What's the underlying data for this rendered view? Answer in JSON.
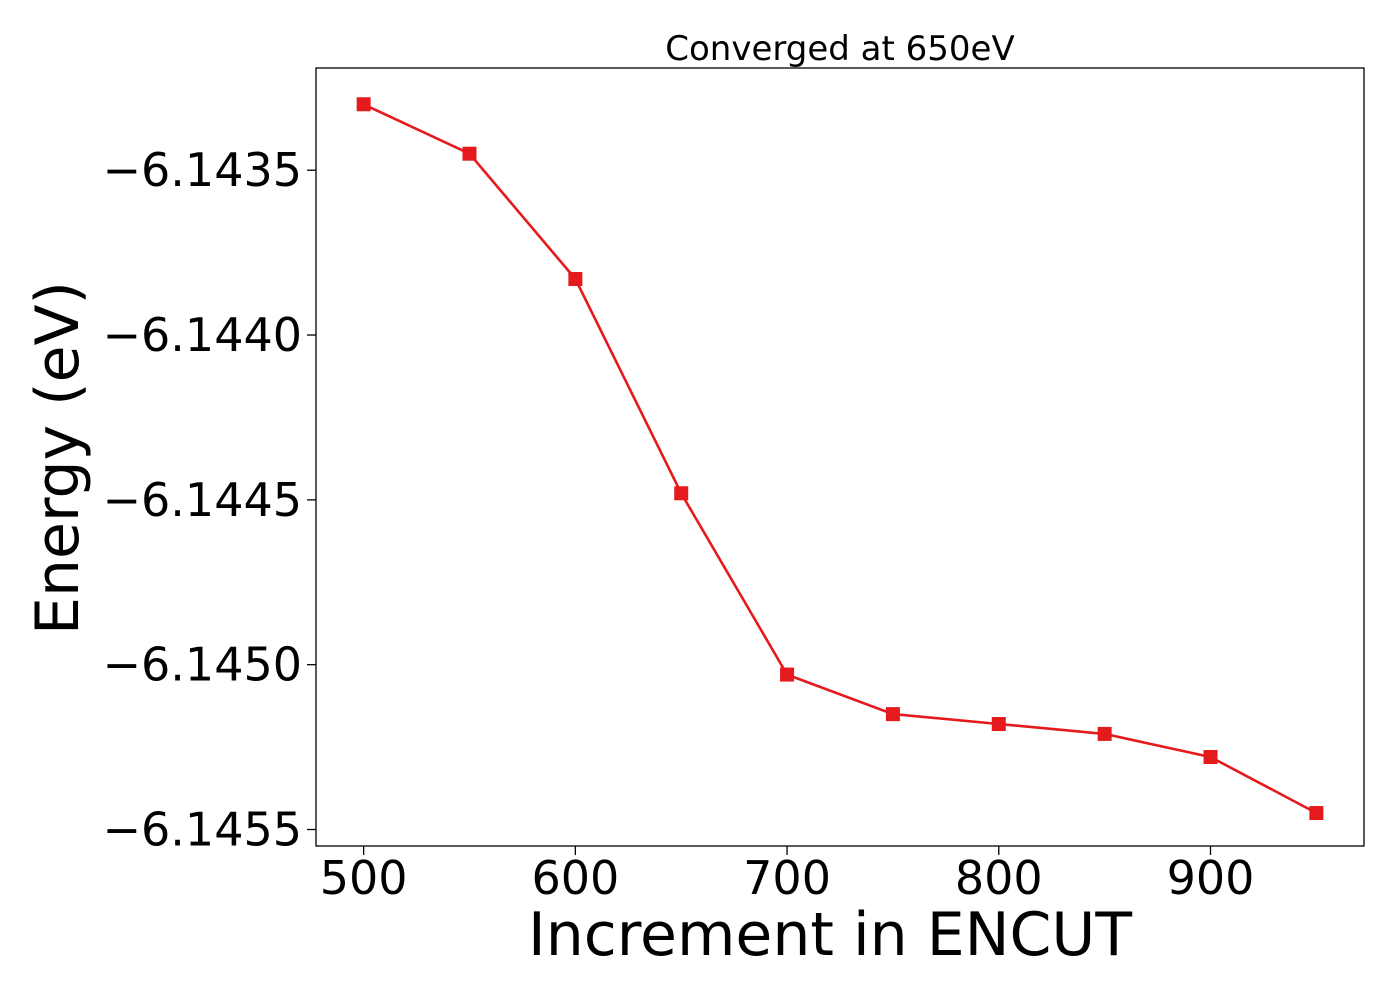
{
  "chart_data": {
    "type": "line",
    "title": "Converged at 650eV",
    "xlabel": "Increment in ENCUT",
    "ylabel": "Energy (eV)",
    "x": [
      500,
      550,
      600,
      650,
      700,
      750,
      800,
      850,
      900,
      950
    ],
    "series": [
      {
        "values": [
          -6.1433,
          -6.14345,
          -6.14383,
          -6.14448,
          -6.14503,
          -6.14515,
          -6.14518,
          -6.14521,
          -6.14528,
          -6.14545
        ],
        "color": "#e41a1c",
        "marker": "square"
      }
    ],
    "xlim": [
      477.5,
      972.5
    ],
    "ylim": [
      -6.14555,
      -6.14319
    ],
    "xticks": [
      500,
      600,
      700,
      800,
      900
    ],
    "xtick_labels": [
      "500",
      "600",
      "700",
      "800",
      "900"
    ],
    "yticks": [
      -6.1435,
      -6.144,
      -6.1445,
      -6.145,
      -6.1455
    ],
    "ytick_labels": [
      "−6.1435",
      "−6.1440",
      "−6.1445",
      "−6.1450",
      "−6.1455"
    ],
    "grid": false,
    "legend": "none"
  }
}
